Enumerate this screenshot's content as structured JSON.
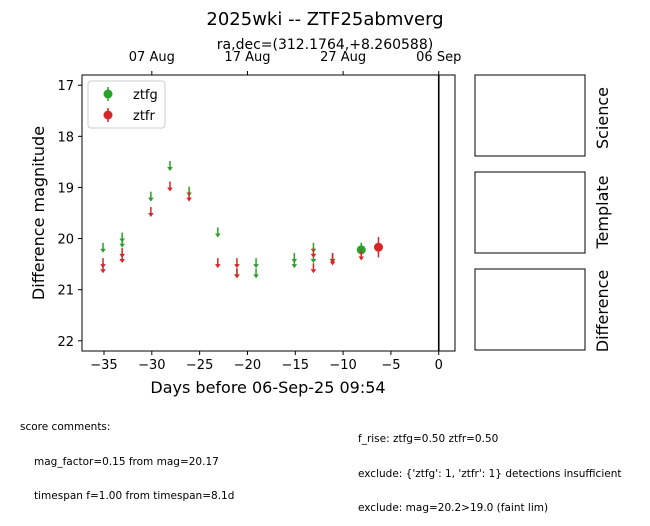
{
  "title": "2025wki -- ZTF25abmverg",
  "subtitle": "ra,dec=(312.1764,+8.260588)",
  "chart_data": {
    "type": "scatter",
    "xlabel": "Days before 06-Sep-25 09:54",
    "ylabel": "Difference magnitude",
    "xlim": [
      -37.3,
      1.7
    ],
    "ylim": [
      22.2,
      16.8
    ],
    "y_inverted": true,
    "xticks": [
      -35,
      -30,
      -25,
      -20,
      -15,
      -10,
      -5,
      0
    ],
    "xtick_labels": [
      "−35",
      "−30",
      "−25",
      "−20",
      "−15",
      "−10",
      "−5",
      "0"
    ],
    "yticks": [
      17,
      18,
      19,
      20,
      21,
      22
    ],
    "ytick_labels": [
      "17",
      "18",
      "19",
      "20",
      "21",
      "22"
    ],
    "top_xticks": [
      -30,
      -20,
      -10,
      0
    ],
    "top_xtick_labels": [
      "07 Aug",
      "17 Aug",
      "27 Aug",
      "06 Sep"
    ],
    "vline_x": 0,
    "legend_position": "upper-left",
    "series": [
      {
        "name": "ztfg",
        "color": "#2ca02c",
        "limits": [
          [
            -35.1,
            20.2
          ],
          [
            -33.1,
            20.0
          ],
          [
            -33.1,
            20.1
          ],
          [
            -30.1,
            19.2
          ],
          [
            -28.1,
            18.6
          ],
          [
            -26.1,
            19.1
          ],
          [
            -23.1,
            19.9
          ],
          [
            -21.1,
            20.7
          ],
          [
            -19.1,
            20.5
          ],
          [
            -19.1,
            20.7
          ],
          [
            -15.1,
            20.4
          ],
          [
            -15.1,
            20.5
          ],
          [
            -13.1,
            20.2
          ],
          [
            -13.1,
            20.4
          ],
          [
            -11.1,
            20.4
          ]
        ],
        "detections": [
          {
            "x": -8.1,
            "y": 20.22,
            "err": 0.14
          }
        ]
      },
      {
        "name": "ztfr",
        "color": "#d62728",
        "limits": [
          [
            -35.1,
            20.5
          ],
          [
            -35.1,
            20.6
          ],
          [
            -33.1,
            20.3
          ],
          [
            -33.1,
            20.4
          ],
          [
            -30.1,
            19.5
          ],
          [
            -28.1,
            19.0
          ],
          [
            -26.1,
            19.2
          ],
          [
            -23.1,
            20.5
          ],
          [
            -21.1,
            20.5
          ],
          [
            -21.1,
            20.7
          ],
          [
            -13.1,
            20.3
          ],
          [
            -13.1,
            20.6
          ],
          [
            -11.1,
            20.4
          ],
          [
            -11.1,
            20.45
          ],
          [
            -8.1,
            20.35
          ]
        ],
        "detections": [
          {
            "x": -6.3,
            "y": 20.17,
            "err": 0.2
          }
        ]
      }
    ]
  },
  "panels": {
    "science_label": "Science",
    "template_label": "Template",
    "difference_label": "Difference"
  },
  "comments": {
    "header": "score comments:",
    "left": [
      "mag_factor=0.15 from mag=20.17",
      "timespan f=1.00 from timespan=8.1d"
    ],
    "right": [
      "f_rise: ztfg=0.50 ztfr=0.50",
      "exclude: {'ztfg': 1, 'ztfr': 1} detections insufficient",
      "exclude: mag=20.2>19.0 (faint lim)"
    ]
  }
}
